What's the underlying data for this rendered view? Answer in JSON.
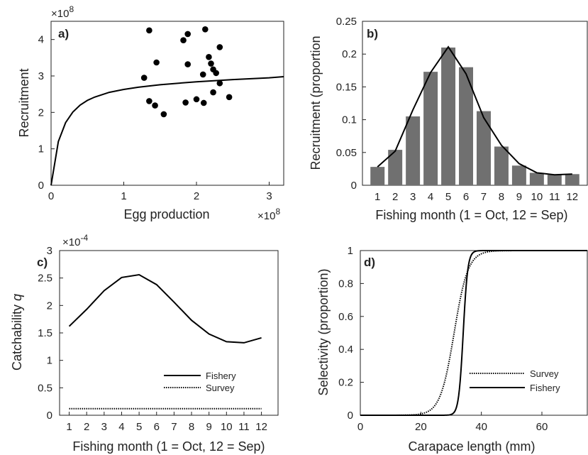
{
  "chart_data": [
    {
      "panel": "a)",
      "type": "scatter",
      "xlabel": "Egg production",
      "ylabel": "Recruitment",
      "x_multiplier": "×10",
      "x_multiplier_exp": "8",
      "y_multiplier": "×10",
      "y_multiplier_exp": "8",
      "xlim": [
        0,
        3.2
      ],
      "ylim": [
        0,
        4.5
      ],
      "xticks": [
        0,
        1,
        2,
        3
      ],
      "yticks": [
        0,
        1,
        2,
        3,
        4
      ],
      "points": [
        [
          1.35,
          4.25
        ],
        [
          1.88,
          4.15
        ],
        [
          2.12,
          4.28
        ],
        [
          1.82,
          3.98
        ],
        [
          1.45,
          3.37
        ],
        [
          1.88,
          3.32
        ],
        [
          2.32,
          3.79
        ],
        [
          2.17,
          3.52
        ],
        [
          2.2,
          3.34
        ],
        [
          2.23,
          3.18
        ],
        [
          2.09,
          3.04
        ],
        [
          2.27,
          3.08
        ],
        [
          1.28,
          2.95
        ],
        [
          2.32,
          2.8
        ],
        [
          2.23,
          2.55
        ],
        [
          2.45,
          2.42
        ],
        [
          1.35,
          2.31
        ],
        [
          1.43,
          2.19
        ],
        [
          1.85,
          2.27
        ],
        [
          2.0,
          2.36
        ],
        [
          2.1,
          2.26
        ],
        [
          1.55,
          1.95
        ]
      ],
      "curve": [
        [
          0,
          0
        ],
        [
          0.1,
          1.2
        ],
        [
          0.2,
          1.72
        ],
        [
          0.3,
          2.01
        ],
        [
          0.4,
          2.2
        ],
        [
          0.5,
          2.33
        ],
        [
          0.6,
          2.42
        ],
        [
          0.8,
          2.55
        ],
        [
          1.0,
          2.63
        ],
        [
          1.2,
          2.69
        ],
        [
          1.5,
          2.76
        ],
        [
          2.0,
          2.84
        ],
        [
          2.5,
          2.9
        ],
        [
          3.0,
          2.95
        ],
        [
          3.3,
          2.98
        ]
      ]
    },
    {
      "panel": "b)",
      "type": "bar",
      "xlabel": "Fishing month (1 = Oct, 12 = Sep)",
      "ylabel": "Recruitment (proportion",
      "categories": [
        "1",
        "2",
        "3",
        "4",
        "5",
        "6",
        "7",
        "8",
        "9",
        "10",
        "11",
        "12"
      ],
      "values": [
        0.028,
        0.054,
        0.105,
        0.173,
        0.21,
        0.18,
        0.113,
        0.059,
        0.03,
        0.019,
        0.016,
        0.017
      ],
      "line": [
        0.028,
        0.052,
        0.115,
        0.172,
        0.211,
        0.17,
        0.103,
        0.061,
        0.033,
        0.019,
        0.016,
        0.017
      ],
      "ylim": [
        0,
        0.25
      ],
      "yticks": [
        "0",
        "0.05",
        "0.1",
        "0.15",
        "0.2",
        "0.25"
      ],
      "bar_color": "#707070"
    },
    {
      "panel": "c)",
      "type": "line",
      "xlabel": "Fishing month (1 = Oct, 12 = Sep)",
      "ylabel": "Catchability ",
      "ylabel_italic": "q",
      "y_multiplier": "×10",
      "y_multiplier_exp": "-4",
      "categories": [
        "1",
        "2",
        "3",
        "4",
        "5",
        "6",
        "7",
        "8",
        "9",
        "10",
        "11",
        "12"
      ],
      "yticks": [
        "0",
        "0.5",
        "1",
        "1.5",
        "2",
        "2.5",
        "3"
      ],
      "ylim": [
        0,
        3
      ],
      "series": [
        {
          "name": "Fishery",
          "style": "solid",
          "values": [
            1.62,
            1.93,
            2.27,
            2.51,
            2.56,
            2.38,
            2.06,
            1.73,
            1.48,
            1.34,
            1.32,
            1.41
          ]
        },
        {
          "name": "Survey",
          "style": "dotted",
          "values": [
            0.12,
            0.12,
            0.12,
            0.12,
            0.12,
            0.12,
            0.12,
            0.12,
            0.12,
            0.12,
            0.12,
            0.12
          ]
        }
      ],
      "legend": "lower-right"
    },
    {
      "panel": "d)",
      "type": "line",
      "xlabel": "Carapace length (mm)",
      "ylabel": "Selectivity (proportion)",
      "xlim": [
        0,
        75
      ],
      "ylim": [
        0,
        1
      ],
      "xticks": [
        "0",
        "20",
        "40",
        "60"
      ],
      "yticks": [
        "0",
        "0.2",
        "0.4",
        "0.6",
        "0.8",
        "1"
      ],
      "series": [
        {
          "name": "Survey",
          "style": "dotted",
          "logistic": {
            "mid": 31,
            "scale": 2.3
          }
        },
        {
          "name": "Fishery",
          "style": "solid",
          "logistic": {
            "mid": 34,
            "scale": 0.75
          }
        }
      ],
      "legend": "lower-right"
    }
  ]
}
